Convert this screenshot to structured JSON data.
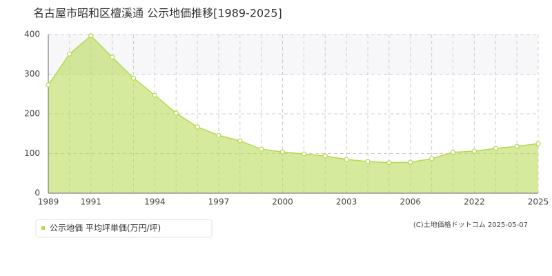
{
  "chart_data": {
    "type": "area",
    "title": "名古屋市昭和区檀溪通 公示地価推移[1989-2025]",
    "categories": [
      "1989",
      null,
      "1991",
      null,
      null,
      "1994",
      null,
      null,
      "1997",
      null,
      null,
      "2000",
      null,
      null,
      "2003",
      null,
      null,
      "2006",
      null,
      null,
      "2022",
      null,
      null,
      "2025"
    ],
    "series": [
      {
        "name": "公示地価 平均坪単価(万円/坪)",
        "color": "#b5d84c",
        "values": [
          273,
          351,
          397,
          343,
          290,
          247,
          202,
          167,
          146,
          132,
          111,
          104,
          99,
          94,
          85,
          80,
          77,
          78,
          87,
          103,
          106,
          113,
          118,
          125
        ]
      }
    ],
    "ylim": [
      0,
      400
    ],
    "yticks": [
      0,
      100,
      200,
      300,
      400
    ],
    "grid": true,
    "copyright": "(C)土地価格ドットコム 2025-05-07"
  }
}
